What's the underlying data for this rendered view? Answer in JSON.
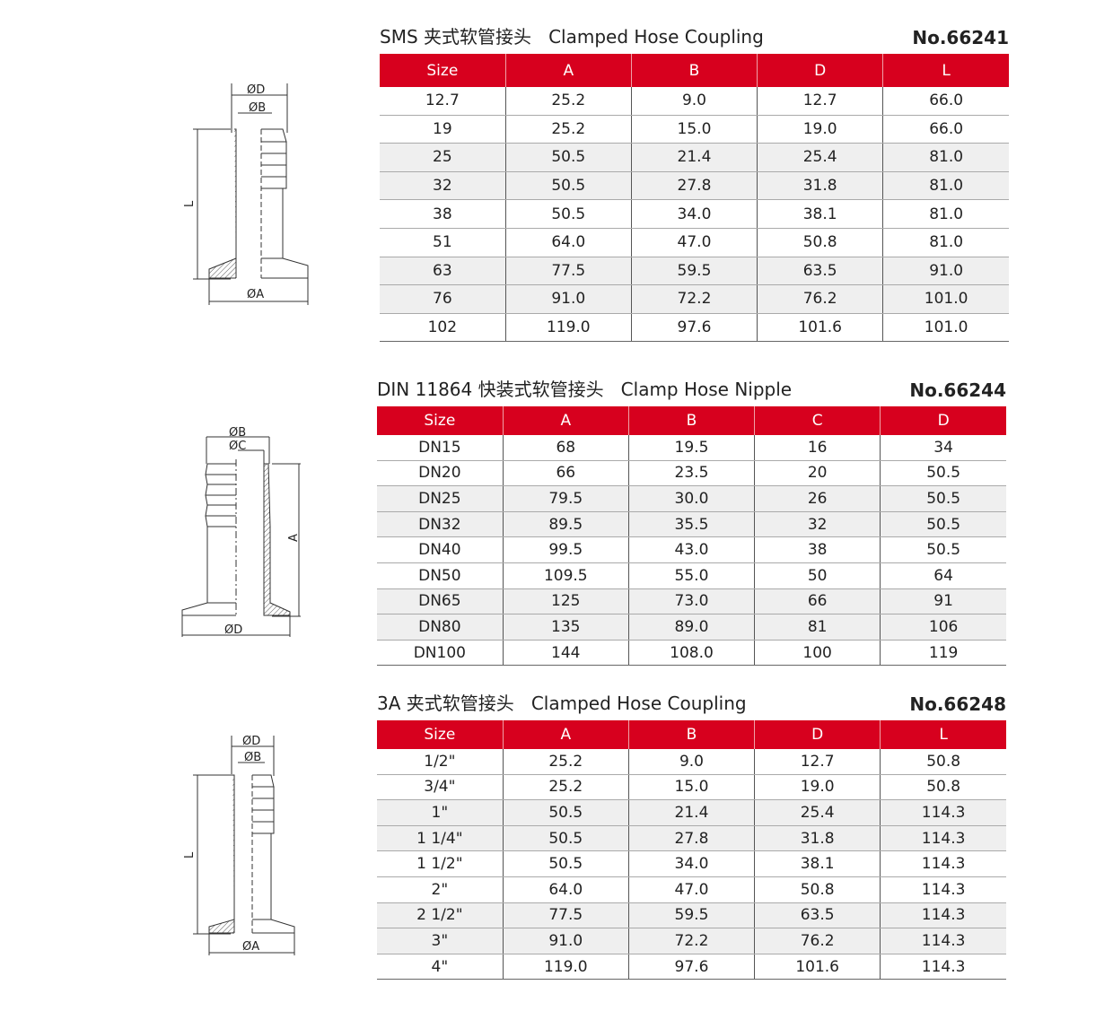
{
  "sections": [
    {
      "title": "SMS 夹式软管接头   Clamped Hose Coupling",
      "code": "No.66241",
      "columns": [
        "Size",
        "A",
        "B",
        "D",
        "L"
      ],
      "rows": [
        [
          "12.7",
          "25.2",
          "9.0",
          "12.7",
          "66.0"
        ],
        [
          "19",
          "25.2",
          "15.0",
          "19.0",
          "66.0"
        ],
        [
          "25",
          "50.5",
          "21.4",
          "25.4",
          "81.0"
        ],
        [
          "32",
          "50.5",
          "27.8",
          "31.8",
          "81.0"
        ],
        [
          "38",
          "50.5",
          "34.0",
          "38.1",
          "81.0"
        ],
        [
          "51",
          "64.0",
          "47.0",
          "50.8",
          "81.0"
        ],
        [
          "63",
          "77.5",
          "59.5",
          "63.5",
          "91.0"
        ],
        [
          "76",
          "91.0",
          "72.2",
          "76.2",
          "101.0"
        ],
        [
          "102",
          "119.0",
          "97.6",
          "101.6",
          "101.0"
        ]
      ],
      "drawing_labels": {
        "top1": "ØD",
        "top2": "ØB",
        "side": "L",
        "bottom": "ØA"
      }
    },
    {
      "title": "DIN 11864 快装式软管接头   Clamp Hose Nipple",
      "code": "No.66244",
      "columns": [
        "Size",
        "A",
        "B",
        "C",
        "D"
      ],
      "rows": [
        [
          "DN15",
          "68",
          "19.5",
          "16",
          "34"
        ],
        [
          "DN20",
          "66",
          "23.5",
          "20",
          "50.5"
        ],
        [
          "DN25",
          "79.5",
          "30.0",
          "26",
          "50.5"
        ],
        [
          "DN32",
          "89.5",
          "35.5",
          "32",
          "50.5"
        ],
        [
          "DN40",
          "99.5",
          "43.0",
          "38",
          "50.5"
        ],
        [
          "DN50",
          "109.5",
          "55.0",
          "50",
          "64"
        ],
        [
          "DN65",
          "125",
          "73.0",
          "66",
          "91"
        ],
        [
          "DN80",
          "135",
          "89.0",
          "81",
          "106"
        ],
        [
          "DN100",
          "144",
          "108.0",
          "100",
          "119"
        ]
      ],
      "drawing_labels": {
        "top1": "ØB",
        "top2": "ØC",
        "side": "A",
        "bottom": "ØD"
      }
    },
    {
      "title": "3A 夹式软管接头   Clamped Hose Coupling",
      "code": "No.66248",
      "columns": [
        "Size",
        "A",
        "B",
        "D",
        "L"
      ],
      "rows": [
        [
          "1/2\"",
          "25.2",
          "9.0",
          "12.7",
          "50.8"
        ],
        [
          "3/4\"",
          "25.2",
          "15.0",
          "19.0",
          "50.8"
        ],
        [
          "1\"",
          "50.5",
          "21.4",
          "25.4",
          "114.3"
        ],
        [
          "1 1/4\"",
          "50.5",
          "27.8",
          "31.8",
          "114.3"
        ],
        [
          "1 1/2\"",
          "50.5",
          "34.0",
          "38.1",
          "114.3"
        ],
        [
          "2\"",
          "64.0",
          "47.0",
          "50.8",
          "114.3"
        ],
        [
          "2 1/2\"",
          "77.5",
          "59.5",
          "63.5",
          "114.3"
        ],
        [
          "3\"",
          "91.0",
          "72.2",
          "76.2",
          "114.3"
        ],
        [
          "4\"",
          "119.0",
          "97.6",
          "101.6",
          "114.3"
        ]
      ],
      "drawing_labels": {
        "top1": "ØD",
        "top2": "ØB",
        "side": "L",
        "bottom": "ØA"
      }
    }
  ],
  "colors": {
    "header_bg": "#d7001e",
    "shaded_row": "#efefef"
  }
}
